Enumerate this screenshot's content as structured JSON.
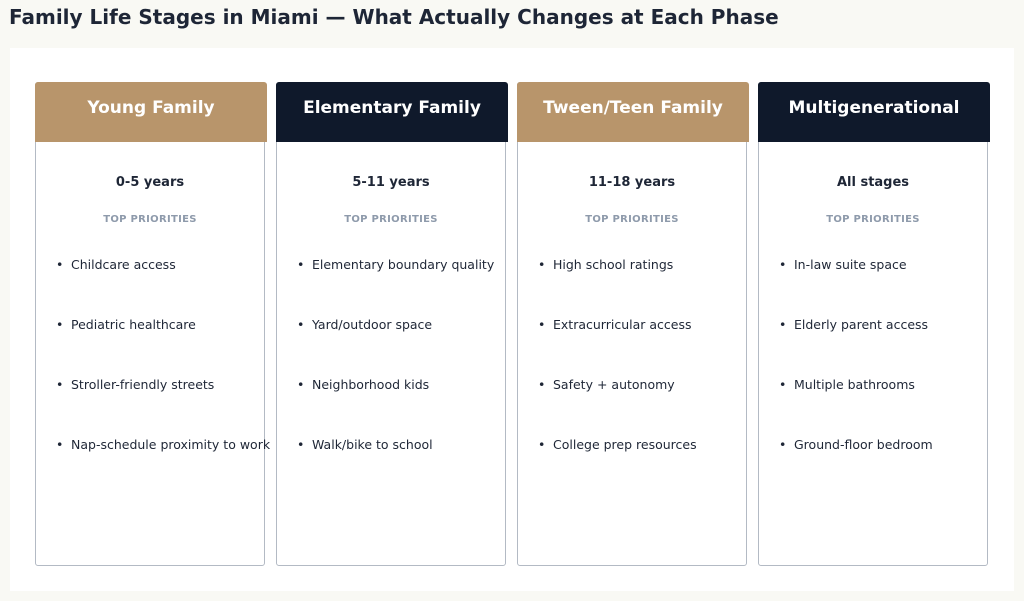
{
  "title": "Family Life Stages in Miami — What Actually Changes at Each Phase",
  "colors": {
    "tan_header": "#b8956b",
    "navy_header": "#0f192b",
    "muted_label": "#8e9aab",
    "text": "#1e2636"
  },
  "cards": [
    {
      "title": "Young Family",
      "age_range": "0-5 years",
      "priorities_label": "TOP PRIORITIES",
      "priorities": [
        "Childcare access",
        "Pediatric healthcare",
        "Stroller-friendly streets",
        "Nap-schedule proximity to work"
      ]
    },
    {
      "title": "Elementary Family",
      "age_range": "5-11 years",
      "priorities_label": "TOP PRIORITIES",
      "priorities": [
        "Elementary boundary quality",
        "Yard/outdoor space",
        "Neighborhood kids",
        "Walk/bike to school"
      ]
    },
    {
      "title": "Tween/Teen Family",
      "age_range": "11-18 years",
      "priorities_label": "TOP PRIORITIES",
      "priorities": [
        "High school ratings",
        "Extracurricular access",
        "Safety + autonomy",
        "College prep resources"
      ]
    },
    {
      "title": "Multigenerational",
      "age_range": "All stages",
      "priorities_label": "TOP PRIORITIES",
      "priorities": [
        "In-law suite space",
        "Elderly parent access",
        "Multiple bathrooms",
        "Ground-floor bedroom"
      ]
    }
  ]
}
